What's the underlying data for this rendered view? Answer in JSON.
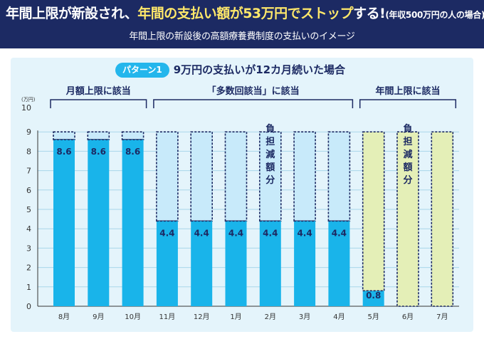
{
  "header": {
    "title_part1": "年間上限が新設され、",
    "title_part2": "年間の支払い額が53万円でストップ",
    "title_part3": "する!",
    "title_note": "(年収500万円の人の場合)",
    "subtitle": "年間上限の新設後の高額療養費制度の支払いのイメージ"
  },
  "pattern": {
    "badge": "パターン1",
    "title": "9万円の支払いが12カ月続いた場合"
  },
  "colors": {
    "header_bg": "#1c2a63",
    "accent_text": "#ffe86a",
    "paid": "#19b4ea",
    "reduced_blue": "#c8eafa",
    "reduced_green": "#e4efb7",
    "panel_bg": "#e4f4fb",
    "dashed": "#1c2a63"
  },
  "chart_data": {
    "type": "bar",
    "stacked": true,
    "categories": [
      "8月",
      "9月",
      "10月",
      "11月",
      "12月",
      "1月",
      "2月",
      "3月",
      "4月",
      "5月",
      "6月",
      "7月"
    ],
    "series": [
      {
        "values": [
          8.6,
          8.6,
          8.6,
          4.4,
          4.4,
          4.4,
          4.4,
          4.4,
          4.4,
          0.8,
          0,
          0
        ]
      },
      {
        "name": "負担減額分",
        "values": [
          0.4,
          0.4,
          0.4,
          4.6,
          4.6,
          4.6,
          4.6,
          4.6,
          4.6,
          8.2,
          9,
          9
        ]
      }
    ],
    "value_labels": [
      "8.6",
      "8.6",
      "8.6",
      "4.4",
      "4.4",
      "4.4",
      "4.4",
      "4.4",
      "4.4",
      "0.8",
      "",
      ""
    ],
    "yunit": "(万円)",
    "ylim": [
      0,
      10
    ],
    "yticks": [
      "0",
      "1",
      "2",
      "3",
      "4",
      "5",
      "6",
      "7",
      "8",
      "9",
      "10"
    ],
    "groups": [
      {
        "label": "月額上限に該当",
        "from": 0,
        "to": 2
      },
      {
        "label": "「多数回該当」に該当",
        "from": 3,
        "to": 8
      },
      {
        "label": "年間上限に該当",
        "from": 9,
        "to": 11
      }
    ],
    "annotations": [
      {
        "text": "負担減額分",
        "at": 6
      },
      {
        "text": "負担減額分",
        "at": 10
      }
    ],
    "grid": true,
    "legend": "none"
  }
}
